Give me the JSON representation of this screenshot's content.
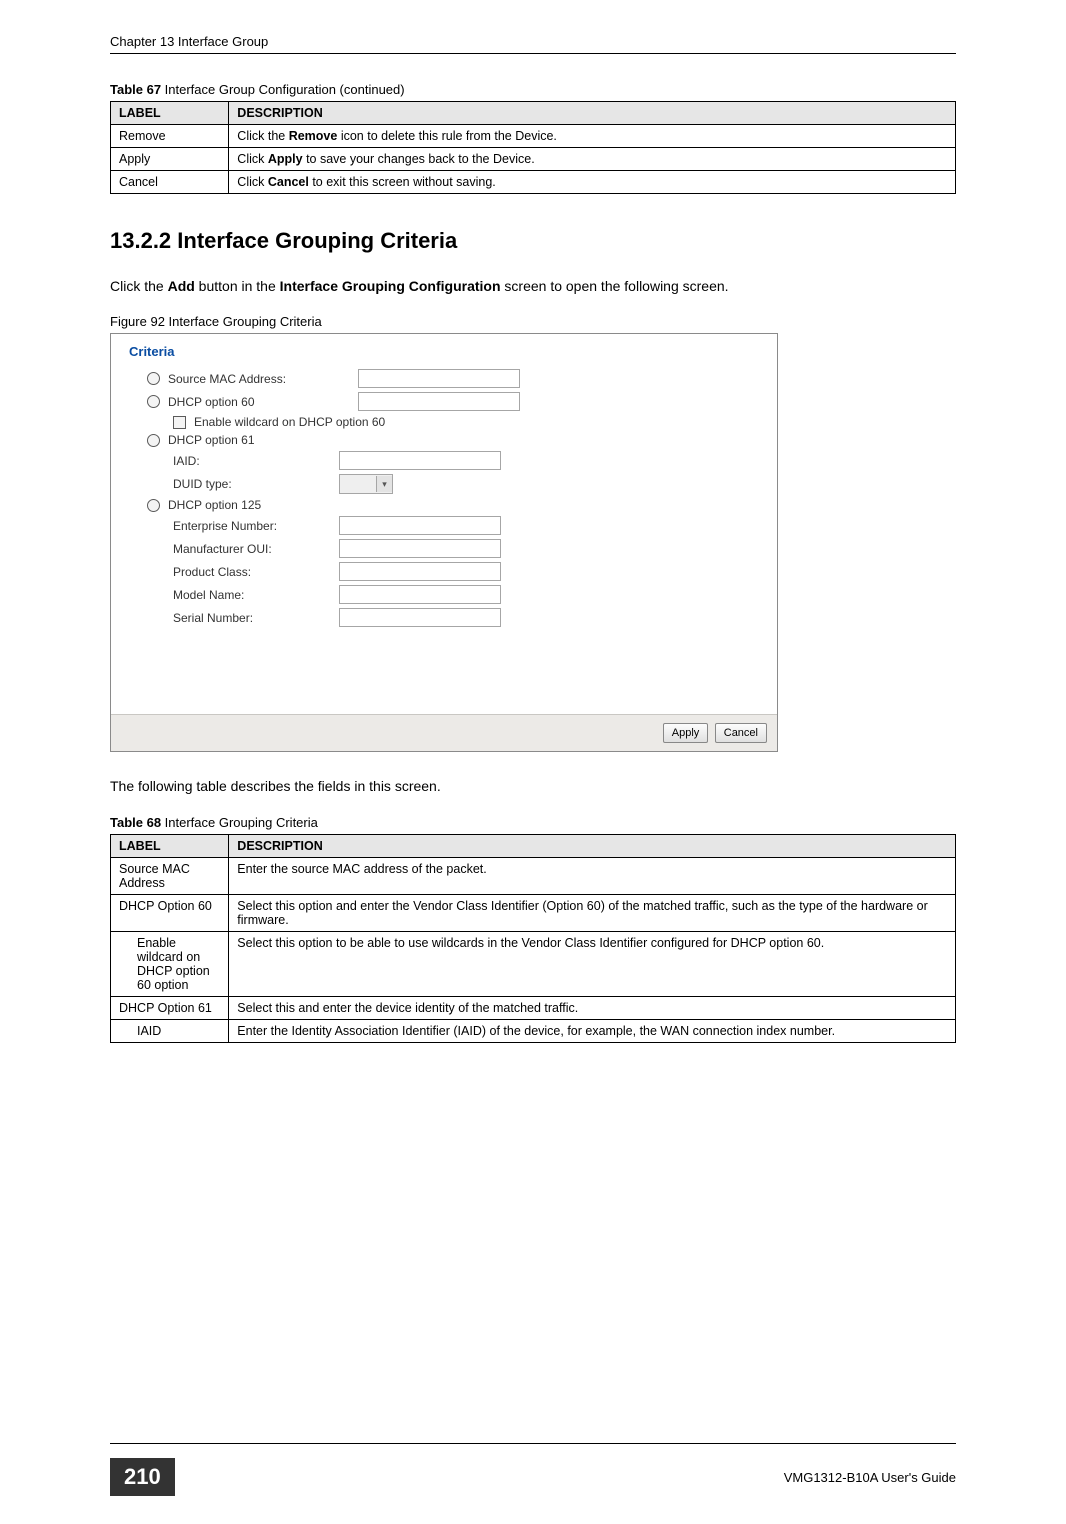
{
  "header": {
    "left": "Chapter 13 Interface Group"
  },
  "table67": {
    "caption_prefix": "Table 67",
    "caption_rest": "   Interface Group Configuration (continued)",
    "col_label": "LABEL",
    "col_desc": "DESCRIPTION",
    "rows": [
      {
        "label": "Remove",
        "desc_pre": "Click the ",
        "desc_bold": "Remove",
        "desc_post": " icon to delete this rule from the Device."
      },
      {
        "label": "Apply",
        "desc_pre": "Click ",
        "desc_bold": "Apply",
        "desc_post": " to save your changes back to the Device."
      },
      {
        "label": "Cancel",
        "desc_pre": "Click ",
        "desc_bold": "Cancel",
        "desc_post": " to exit this screen without saving."
      }
    ]
  },
  "section": {
    "number_title": "13.2.2   Interface Grouping Criteria",
    "intro_pre": "Click the ",
    "intro_b1": "Add",
    "intro_mid": " button in the ",
    "intro_b2": "Interface Grouping Configuration",
    "intro_post": " screen to open the following screen."
  },
  "figure": {
    "prefix": "Figure 92",
    "rest": "   Interface Grouping Criteria"
  },
  "screenshot": {
    "group_title": "Criteria",
    "r_source_mac": "Source MAC Address:",
    "r_dhcp60": "DHCP option 60",
    "chk_wildcard": "Enable wildcard on DHCP option 60",
    "r_dhcp61": "DHCP option 61",
    "iaid": "IAID:",
    "duid": "DUID type:",
    "r_dhcp125": "DHCP option 125",
    "ent_num": "Enterprise Number:",
    "manu_oui": "Manufacturer OUI:",
    "prod_class": "Product Class:",
    "model_name": "Model Name:",
    "serial_num": "Serial Number:",
    "btn_apply": "Apply",
    "btn_cancel": "Cancel"
  },
  "after_fig": "The following table describes the fields in this screen.",
  "table68": {
    "caption_prefix": "Table 68",
    "caption_rest": "   Interface Grouping Criteria",
    "col_label": "LABEL",
    "col_desc": "DESCRIPTION",
    "rows": [
      {
        "label": "Source MAC Address",
        "indent": false,
        "desc": "Enter the source MAC address of the packet."
      },
      {
        "label": "DHCP Option 60",
        "indent": false,
        "desc": "Select this option and enter the Vendor Class Identifier (Option 60) of the matched traffic, such as the type of the hardware or firmware."
      },
      {
        "label": "Enable wildcard on DHCP option 60 option",
        "indent": true,
        "desc": "Select this option to be able to use wildcards in the Vendor Class Identifier configured for DHCP option 60."
      },
      {
        "label": "DHCP Option 61",
        "indent": false,
        "desc": "Select this and enter the device identity of the matched traffic."
      },
      {
        "label": "IAID",
        "indent": true,
        "desc": "Enter the Identity Association Identifier (IAID) of the device, for example, the WAN connection index number."
      }
    ]
  },
  "footer": {
    "page_number": "210",
    "guide": "VMG1312-B10A User's Guide"
  }
}
